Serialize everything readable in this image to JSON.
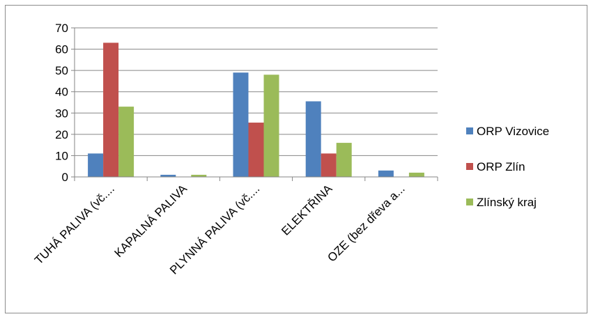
{
  "chart_data": {
    "type": "bar",
    "categories": [
      "TUHÁ PALIVA (vč....",
      "KAPALNÁ PALIVA",
      "PLYNNÁ PALIVA (vč....",
      "ELEKTŘINA",
      "OZE (bez dřeva a..."
    ],
    "series": [
      {
        "name": "ORP Vizovice",
        "color": "#4f81bd",
        "values": [
          11,
          1,
          49,
          35.5,
          3
        ]
      },
      {
        "name": "ORP Zlín",
        "color": "#c0504d",
        "values": [
          63,
          0,
          25.5,
          11,
          0
        ]
      },
      {
        "name": "Zlínský kraj",
        "color": "#9bbb59",
        "values": [
          33,
          1,
          48,
          16,
          2
        ]
      }
    ],
    "ylim": [
      0,
      70
    ],
    "yticks": [
      0,
      10,
      20,
      30,
      40,
      50,
      60,
      70
    ],
    "grid": true,
    "legend_position": "right"
  }
}
